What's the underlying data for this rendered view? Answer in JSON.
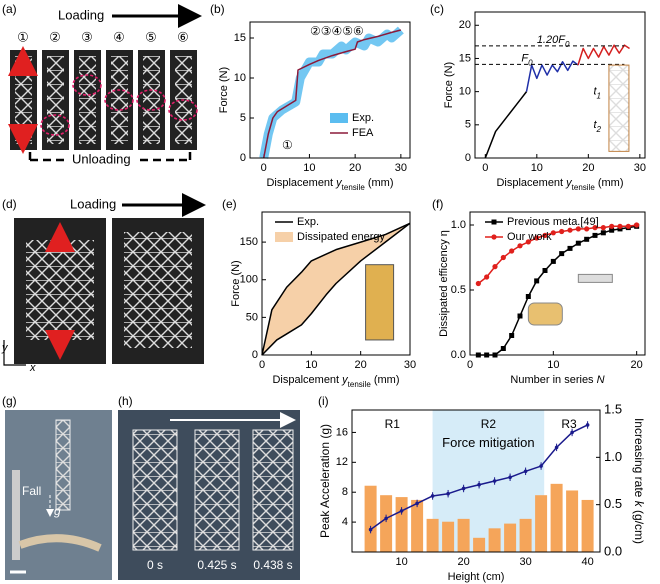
{
  "panels": {
    "a": {
      "label": "(a)",
      "loading": "Loading",
      "unloading": "Unloading",
      "steps": [
        "①",
        "②",
        "③",
        "④",
        "⑤",
        "⑥"
      ]
    },
    "d": {
      "label": "(d)",
      "loading": "Loading",
      "axis_y": "y",
      "axis_x": "x"
    },
    "g": {
      "label": "(g)",
      "fall": "Fall",
      "g": "g"
    },
    "h": {
      "label": "(h)",
      "times": [
        "0 s",
        "0.425 s",
        "0.438 s"
      ]
    }
  },
  "chart_data": [
    {
      "type": "line",
      "label": "(b)",
      "xlim": [
        -3,
        32
      ],
      "ylim": [
        0,
        17
      ],
      "xticks": [
        0,
        10,
        20,
        30
      ],
      "yticks": [
        0,
        5,
        10,
        15
      ],
      "xlabel": {
        "text": "Displacement ",
        "var": "y",
        "sub": "tensile",
        "unit": " (mm)"
      },
      "ylabel": "Force (N)",
      "series": [
        {
          "name": "Exp.",
          "style": "band",
          "color": "#5bbdf0",
          "x": [
            0,
            1,
            2,
            4,
            7,
            8,
            10,
            12,
            13,
            15,
            17,
            18,
            20,
            22,
            23,
            25,
            27,
            28,
            30
          ],
          "values": [
            0,
            3,
            5,
            6,
            7,
            10,
            12,
            12,
            13,
            13,
            14,
            13.5,
            14.5,
            14,
            15,
            14.5,
            15.5,
            15,
            16
          ]
        },
        {
          "name": "FEA",
          "color": "#8b1a3a",
          "x": [
            0,
            1,
            2,
            3,
            5,
            7,
            7.5,
            10,
            12,
            15,
            18,
            20,
            20.5,
            22,
            25,
            28,
            30
          ],
          "values": [
            0,
            3,
            5,
            5.8,
            6.5,
            7.2,
            11,
            11.7,
            12.2,
            12.8,
            13.3,
            13.6,
            14.5,
            14.8,
            15.2,
            15.7,
            16
          ]
        }
      ],
      "annotations": [
        "②③④⑤⑥",
        "①"
      ]
    },
    {
      "type": "line",
      "label": "(c)",
      "xlim": [
        -2,
        31
      ],
      "ylim": [
        0,
        22
      ],
      "xticks": [
        0,
        10,
        20,
        30
      ],
      "yticks": [
        0,
        5,
        10,
        15,
        20
      ],
      "xlabel": {
        "text": "Displacement ",
        "var": "y",
        "sub": "tensile",
        "unit": " (mm)"
      },
      "ylabel": "Force (N)",
      "series": [
        {
          "color": "#000000",
          "x": [
            0,
            2,
            4,
            6,
            7,
            8
          ],
          "values": [
            0,
            4,
            6,
            8,
            9,
            10
          ]
        },
        {
          "color": "#1f2fa8",
          "x": [
            8,
            9,
            10,
            11,
            12,
            13,
            14,
            15,
            16,
            17,
            18
          ],
          "values": [
            10,
            14,
            12,
            14,
            12.5,
            14,
            13,
            14.5,
            13.2,
            14.6,
            14
          ]
        },
        {
          "color": "#d42020",
          "x": [
            18,
            19,
            20,
            21,
            22,
            23,
            24,
            25,
            26,
            27,
            28
          ],
          "values": [
            14,
            16.5,
            15,
            16.5,
            15.2,
            16.8,
            15.5,
            17,
            15.8,
            17,
            16.5
          ]
        }
      ],
      "ref_lines": [
        {
          "value": 16.9,
          "label": "1.20F",
          "sub": "0"
        },
        {
          "value": 14.1,
          "label": "F",
          "sub": "0"
        }
      ],
      "annotations": [
        {
          "text": "t",
          "sub": "1"
        },
        {
          "text": "t",
          "sub": "2"
        }
      ]
    },
    {
      "type": "line",
      "label": "(e)",
      "xlim": [
        0,
        30
      ],
      "ylim": [
        0,
        190
      ],
      "xticks": [
        0,
        10,
        20,
        30
      ],
      "yticks": [
        0,
        50,
        100,
        150
      ],
      "xlabel": {
        "text": "Dispalcement ",
        "var": "y",
        "sub": "tensile",
        "unit": " (mm)"
      },
      "ylabel": "Force (N)",
      "series": [
        {
          "name": "Exp.",
          "color": "#000000",
          "x": [
            0,
            2,
            5,
            8,
            10,
            15,
            20,
            25,
            30
          ],
          "values": [
            0,
            60,
            90,
            110,
            125,
            140,
            150,
            160,
            175
          ]
        },
        {
          "color": "#000000",
          "x": [
            0,
            3,
            5,
            8,
            10,
            13,
            15,
            20,
            25,
            30
          ],
          "values": [
            0,
            20,
            28,
            40,
            55,
            80,
            95,
            125,
            150,
            175
          ]
        }
      ],
      "fill": {
        "name": "Dissipated energy",
        "color": "#f6d0a8"
      }
    },
    {
      "type": "line",
      "label": "(f)",
      "xlim": [
        0,
        21
      ],
      "ylim": [
        0,
        1.1
      ],
      "xticks": [
        0,
        10,
        20
      ],
      "yticks": [
        {
          "value": 0,
          "label": "0.0"
        },
        {
          "value": 0.5,
          "label": "0.5"
        },
        {
          "value": 1,
          "label": "1.0"
        }
      ],
      "xlabel": {
        "text": "Number in series ",
        "var": "N"
      },
      "ylabel": "Dissipated efficency η",
      "series": [
        {
          "name": "Previous meta.[49]",
          "marker": "square",
          "color": "#000000",
          "x": [
            1,
            2,
            3,
            4,
            5,
            6,
            7,
            8,
            9,
            10,
            11,
            12,
            13,
            14,
            15,
            16,
            17,
            18,
            19,
            20
          ],
          "values": [
            0,
            0,
            0,
            0.05,
            0.15,
            0.3,
            0.45,
            0.57,
            0.65,
            0.72,
            0.78,
            0.82,
            0.86,
            0.89,
            0.92,
            0.94,
            0.96,
            0.97,
            0.98,
            0.99
          ]
        },
        {
          "name": "Our work",
          "marker": "circle",
          "color": "#e0201c",
          "x": [
            1,
            2,
            3,
            4,
            5,
            6,
            7,
            8,
            9,
            10,
            11,
            12,
            13,
            14,
            15,
            16,
            17,
            18,
            19,
            20
          ],
          "values": [
            0.55,
            0.6,
            0.68,
            0.75,
            0.8,
            0.84,
            0.87,
            0.9,
            0.92,
            0.94,
            0.95,
            0.96,
            0.97,
            0.97,
            0.98,
            0.98,
            0.99,
            0.99,
            0.99,
            1.0
          ]
        }
      ]
    },
    {
      "type": "line",
      "label": "(i)",
      "xlim": [
        2,
        42
      ],
      "ylim": [
        0,
        19
      ],
      "xticks": [
        10,
        20,
        30,
        40
      ],
      "yticks": [
        4,
        8,
        12,
        16
      ],
      "y2lim": [
        0,
        1.5
      ],
      "y2ticks": [
        {
          "value": 0,
          "label": "0.0"
        },
        {
          "value": 0.5,
          "label": "0.5"
        },
        {
          "value": 1,
          "label": "1.0"
        },
        {
          "value": 1.5,
          "label": "1.5"
        }
      ],
      "xlabel": "Height (cm)",
      "ylabel": "Peak Acceleration (g)",
      "ylabel_color": "#1a1a8c",
      "y2label": {
        "text": "Increasing rate ",
        "var": "k",
        "unit": " (g/cm)"
      },
      "y2label_color": "#f0a050",
      "region": {
        "from": 15,
        "to": 33,
        "color": "#d6ecf8"
      },
      "annotations": [
        "R1",
        "R2",
        "Force mitigation",
        "R3"
      ],
      "series": [
        {
          "kind": "bar",
          "axis": "y2",
          "color": "#f5a55a",
          "x": [
            5,
            7.5,
            10,
            12.5,
            15,
            17.5,
            20,
            22.5,
            25,
            27.5,
            30,
            32.5,
            35,
            37.5,
            40
          ],
          "values": [
            0.7,
            0.6,
            0.58,
            0.55,
            0.35,
            0.32,
            0.35,
            0.15,
            0.25,
            0.3,
            0.35,
            0.6,
            0.72,
            0.65,
            0.55
          ]
        },
        {
          "marker": "dot",
          "color": "#1a1a8c",
          "x": [
            5,
            7.5,
            10,
            12.5,
            15,
            17.5,
            20,
            22.5,
            25,
            27.5,
            30,
            32.5,
            35,
            37.5,
            40
          ],
          "values": [
            3,
            4.5,
            5.5,
            6.5,
            7.5,
            7.8,
            8.5,
            9,
            9.5,
            10,
            10.8,
            11.5,
            14,
            16,
            17
          ],
          "errors": [
            0.5,
            0.5,
            0.5,
            0.5,
            0.5,
            0.5,
            0.5,
            0.5,
            0.5,
            0.5,
            0.5,
            0.5,
            0.5,
            0.5,
            0.5
          ]
        }
      ]
    }
  ]
}
